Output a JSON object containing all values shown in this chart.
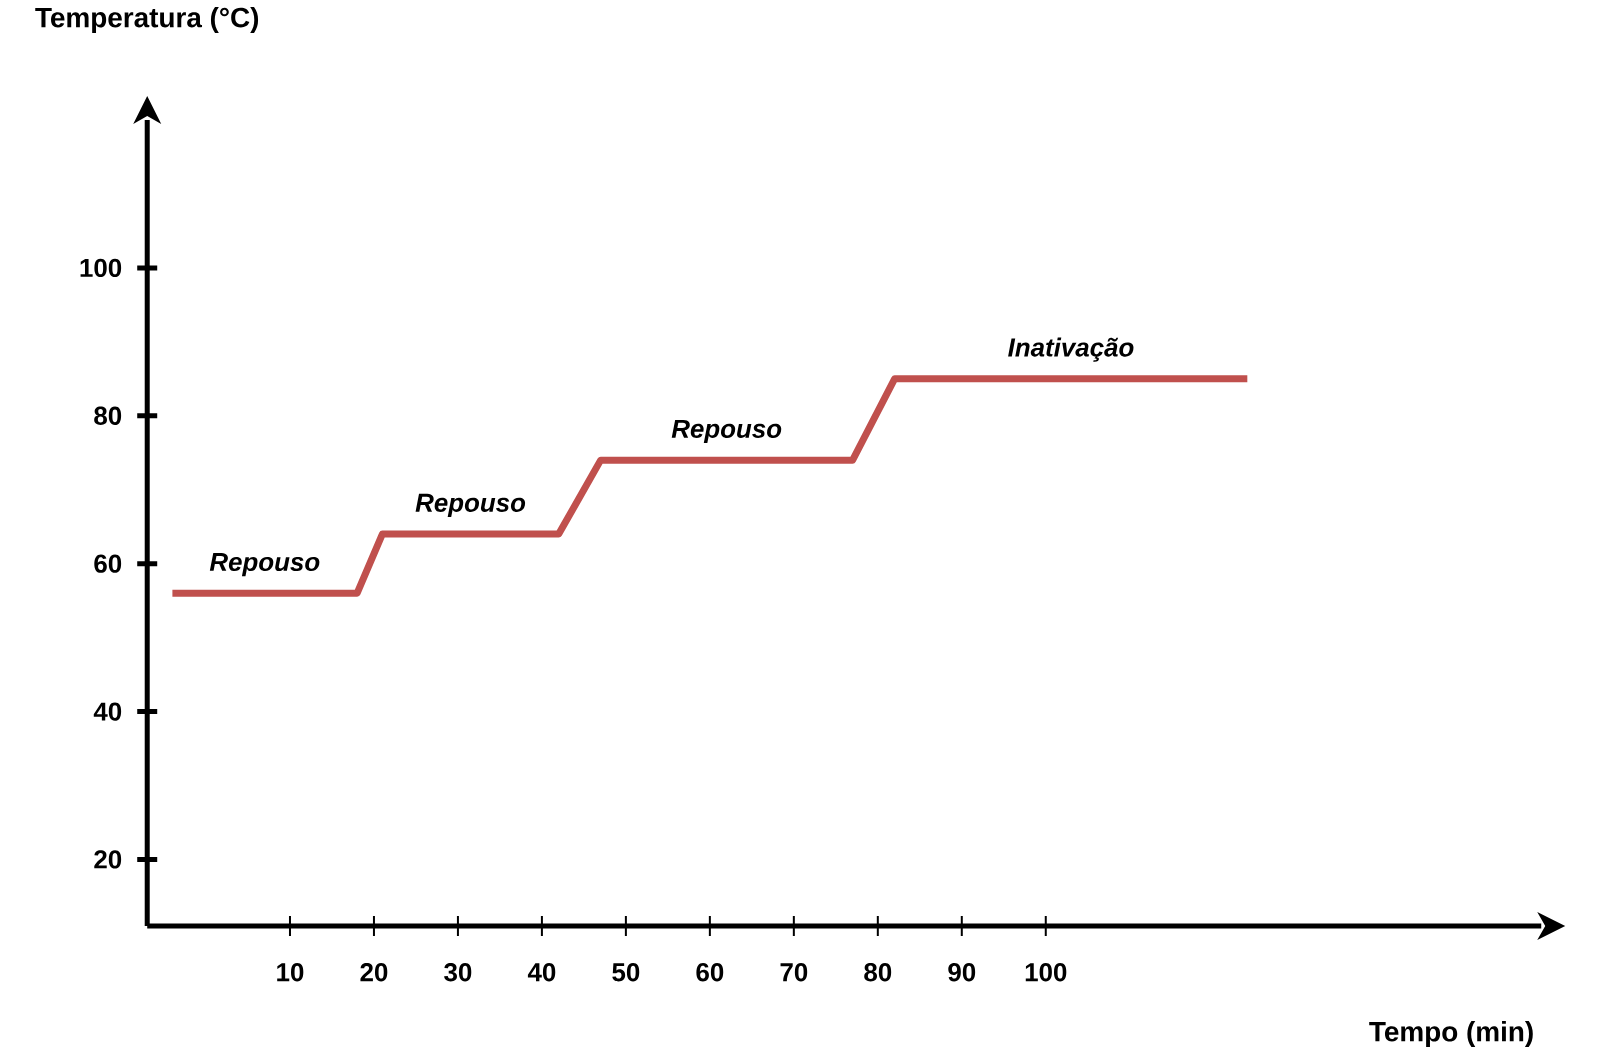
{
  "chart_data": {
    "type": "line",
    "xlabel": "Tempo (min)",
    "ylabel": "Temperatura (°C)",
    "x": [
      -4,
      18,
      21,
      42,
      47,
      77,
      82,
      124
    ],
    "series": [
      {
        "color": "#c0504d",
        "values": [
          56,
          56,
          64,
          64,
          74,
          74,
          85,
          85
        ]
      }
    ],
    "xlim": [
      -7,
      159
    ],
    "ylim": [
      11,
      120
    ],
    "xticks": [
      10,
      20,
      30,
      40,
      50,
      60,
      70,
      80,
      90,
      100
    ],
    "yticks": [
      20,
      40,
      60,
      80,
      100
    ],
    "annotations": [
      "Repouso",
      "Repouso",
      "Repouso",
      "Inativação"
    ],
    "marker": "none",
    "line_style": "solid"
  }
}
